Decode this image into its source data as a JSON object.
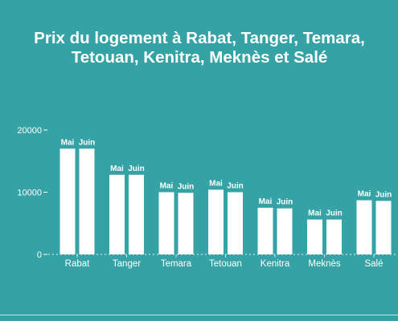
{
  "chart_data": {
    "type": "bar",
    "title_lines": [
      "Prix du logement à Rabat, Tanger, Temara,",
      "Tetouan, Kenitra, Meknès et Salé"
    ],
    "categories": [
      "Rabat",
      "Tanger",
      "Temara",
      "Tetouan",
      "Kenitra",
      "Meknès",
      "Salé"
    ],
    "series": [
      {
        "name": "Mai",
        "values": [
          17000,
          12800,
          10000,
          10400,
          7500,
          5600,
          8700
        ]
      },
      {
        "name": "Juin",
        "values": [
          17000,
          12800,
          9900,
          10000,
          7400,
          5600,
          8600
        ]
      }
    ],
    "ylim": [
      0,
      20000
    ],
    "yticks": [
      0,
      10000,
      20000
    ],
    "grid": false,
    "colors": {
      "background": "#35a3a5",
      "bars": "#ffffff",
      "text": "#ffffff"
    }
  }
}
